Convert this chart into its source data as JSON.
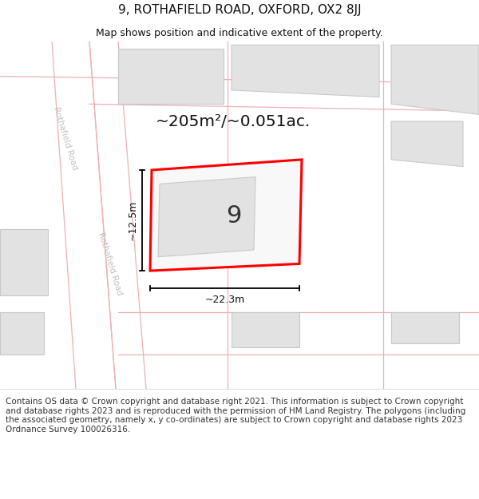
{
  "title": "9, ROTHAFIELD ROAD, OXFORD, OX2 8JJ",
  "subtitle": "Map shows position and indicative extent of the property.",
  "area_label": "~205m²/~0.051ac.",
  "width_label": "~22.3m",
  "height_label": "~12.5m",
  "house_number": "9",
  "footer_text": "Contains OS data © Crown copyright and database right 2021. This information is subject to Crown copyright and database rights 2023 and is reproduced with the permission of HM Land Registry. The polygons (including the associated geometry, namely x, y co-ordinates) are subject to Crown copyright and database rights 2023 Ordnance Survey 100026316.",
  "bg_color": "#ffffff",
  "map_bg": "#f5f5f5",
  "road_color": "#f0b0b0",
  "road_label_color": "#c0c0c0",
  "building_fill": "#e2e2e2",
  "building_edge": "#c8c8c8",
  "highlight_color": "#ff0000",
  "dim_line_color": "#000000",
  "title_fontsize": 11,
  "subtitle_fontsize": 9,
  "area_label_fontsize": 15,
  "footer_fontsize": 7.5
}
